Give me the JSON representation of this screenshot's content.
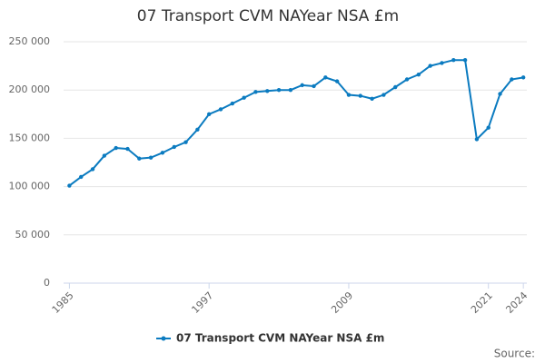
{
  "chart_data": {
    "type": "line",
    "title": "07 Transport CVM NAYear NSA £m",
    "x": [
      1985,
      1986,
      1987,
      1988,
      1989,
      1990,
      1991,
      1992,
      1993,
      1994,
      1995,
      1996,
      1997,
      1998,
      1999,
      2000,
      2001,
      2002,
      2003,
      2004,
      2005,
      2006,
      2007,
      2008,
      2009,
      2010,
      2011,
      2012,
      2013,
      2014,
      2015,
      2016,
      2017,
      2018,
      2019,
      2020,
      2021,
      2022,
      2023,
      2024
    ],
    "series": [
      {
        "name": "07 Transport CVM NAYear NSA £m",
        "color": "#0b7bc0",
        "values": [
          101000,
          110000,
          118000,
          132000,
          140000,
          139000,
          129000,
          130000,
          135000,
          141000,
          146000,
          159000,
          175000,
          180000,
          186000,
          192000,
          198000,
          199000,
          200000,
          200000,
          205000,
          204000,
          213000,
          209000,
          195000,
          194000,
          191000,
          195000,
          203000,
          211000,
          216000,
          225000,
          228000,
          231000,
          231000,
          149000,
          161000,
          196000,
          211000,
          213000
        ]
      }
    ],
    "xlim": [
      1984.5,
      2024.3
    ],
    "xticks": [
      1985,
      1997,
      2009,
      2021,
      2024
    ],
    "ylim": [
      0,
      250000
    ],
    "yticks": [
      0,
      {
        "value": 50000,
        "label": "50 000"
      },
      {
        "value": 100000,
        "label": "100 000"
      },
      {
        "value": 150000,
        "label": "150 000"
      },
      {
        "value": 200000,
        "label": "200 000"
      },
      {
        "value": 250000,
        "label": "250 000"
      }
    ],
    "grid": true,
    "source": "Source:"
  }
}
